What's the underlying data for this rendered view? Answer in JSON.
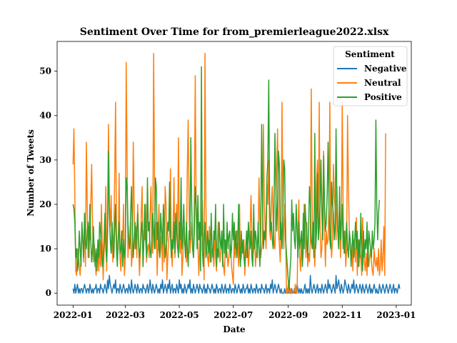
{
  "chart_data": {
    "type": "line",
    "title": "Sentiment Over Time for from_premierleague2022.xlsx",
    "xlabel": "Date",
    "ylabel": "Number of Tweets",
    "x_start": "2022-01-01",
    "x_end": "2022-12-31",
    "xlim": [
      "2021-12-14",
      "2023-01-18"
    ],
    "ylim": [
      -2.7,
      56.7
    ],
    "x_ticks": [
      "2022-01",
      "2022-03",
      "2022-05",
      "2022-07",
      "2022-09",
      "2022-11",
      "2023-01"
    ],
    "y_ticks": [
      0,
      10,
      20,
      30,
      40,
      50
    ],
    "grid": false,
    "legend": {
      "title": "Sentiment",
      "position": "top-right"
    },
    "series": [
      {
        "name": "Negative",
        "color": "#1f77b4",
        "values": [
          1,
          0,
          2,
          0,
          1,
          2,
          0,
          1,
          0,
          1,
          1,
          0,
          1,
          2,
          1,
          0,
          1,
          1,
          0,
          2,
          1,
          0,
          1,
          0,
          1,
          1,
          2,
          0,
          1,
          1,
          0,
          2,
          1,
          1,
          0,
          1,
          2,
          1,
          0,
          3,
          1,
          4,
          2,
          1,
          0,
          1,
          2,
          1,
          3,
          0,
          1,
          1,
          0,
          2,
          1,
          0,
          1,
          2,
          1,
          0,
          1,
          1,
          0,
          2,
          1,
          0,
          3,
          1,
          0,
          1,
          2,
          1,
          0,
          2,
          1,
          0,
          1,
          1,
          0,
          2,
          1,
          1,
          0,
          1,
          2,
          0,
          1,
          3,
          1,
          0,
          2,
          1,
          0,
          1,
          2,
          1,
          0,
          1,
          0,
          2,
          1,
          3,
          0,
          1,
          2,
          1,
          0,
          2,
          1,
          3,
          0,
          1,
          2,
          0,
          1,
          1,
          0,
          2,
          1,
          0,
          3,
          1,
          2,
          0,
          1,
          0,
          2,
          1,
          0,
          1,
          2,
          1,
          3,
          0,
          1,
          0,
          2,
          1,
          0,
          1,
          2,
          1,
          0,
          2,
          1,
          1,
          0,
          1,
          2,
          0,
          1,
          0,
          2,
          1,
          1,
          0,
          1,
          2,
          1,
          0,
          1,
          0,
          2,
          1,
          0,
          1,
          1,
          0,
          2,
          1,
          0,
          1,
          2,
          0,
          1,
          1,
          0,
          2,
          1,
          0,
          1,
          1,
          0,
          2,
          1,
          0,
          1,
          2,
          1,
          0,
          1,
          0,
          2,
          1,
          0,
          1,
          1,
          2,
          0,
          1,
          0,
          2,
          1,
          0,
          1,
          1,
          0,
          2,
          1,
          0,
          1,
          1,
          0,
          2,
          1,
          1,
          0,
          1,
          2,
          0,
          1,
          1,
          0,
          2,
          1,
          3,
          0,
          1,
          2,
          1,
          0,
          1,
          2,
          1,
          0,
          1,
          0,
          0,
          0,
          1,
          0,
          0,
          1,
          0,
          2,
          0,
          0,
          1,
          0,
          0,
          1,
          0,
          0,
          2,
          1,
          0,
          1,
          0,
          1,
          0,
          0,
          1,
          2,
          0,
          1,
          0,
          1,
          0,
          4,
          1,
          0,
          1,
          2,
          1,
          0,
          1,
          2,
          0,
          1,
          1,
          0,
          2,
          1,
          0,
          1,
          2,
          1,
          0,
          3,
          1,
          2,
          1,
          0,
          1,
          2,
          1,
          0,
          4,
          1,
          2,
          3,
          1,
          0,
          2,
          1,
          0,
          1,
          3,
          2,
          1,
          0,
          2,
          1,
          0,
          1,
          2,
          1,
          3,
          0,
          1,
          2,
          1,
          0,
          1,
          2,
          1,
          0,
          2,
          1,
          0,
          1,
          2,
          1,
          0,
          1,
          2,
          0,
          1,
          0,
          1,
          2,
          1,
          0,
          1,
          0,
          0,
          2,
          1,
          0,
          1,
          2,
          1,
          0,
          1,
          2,
          1,
          0,
          1,
          2,
          1,
          0,
          1,
          2,
          0,
          1,
          1,
          0,
          1,
          2,
          1
        ]
      },
      {
        "name": "Neutral",
        "color": "#ff7f0e",
        "values": [
          29,
          37,
          22,
          5,
          4,
          10,
          9,
          6,
          4,
          8,
          14,
          12,
          7,
          18,
          6,
          34,
          20,
          8,
          15,
          12,
          20,
          29,
          16,
          7,
          11,
          7,
          4,
          8,
          10,
          5,
          12,
          6,
          20,
          11,
          3,
          9,
          13,
          24,
          5,
          17,
          38,
          20,
          15,
          22,
          11,
          7,
          13,
          26,
          43,
          14,
          9,
          10,
          27,
          8,
          5,
          14,
          12,
          20,
          4,
          8,
          52,
          30,
          8,
          12,
          10,
          16,
          6,
          9,
          34,
          20,
          10,
          15,
          8,
          20,
          11,
          4,
          9,
          18,
          24,
          6,
          14,
          12,
          20,
          7,
          10,
          11,
          8,
          18,
          24,
          12,
          9,
          54,
          26,
          10,
          16,
          4,
          12,
          20,
          8,
          10,
          13,
          5,
          18,
          7,
          24,
          20,
          3,
          8,
          12,
          14,
          28,
          10,
          6,
          15,
          26,
          8,
          12,
          20,
          10,
          35,
          12,
          9,
          16,
          4,
          8,
          15,
          11,
          10,
          7,
          28,
          39,
          20,
          9,
          12,
          16,
          11,
          8,
          22,
          49,
          20,
          15,
          11,
          4,
          10,
          14,
          13,
          21,
          12,
          3,
          54,
          20,
          10,
          8,
          6,
          15,
          12,
          7,
          10,
          9,
          6,
          14,
          8,
          5,
          12,
          16,
          10,
          7,
          10,
          14,
          8,
          6,
          4,
          12,
          10,
          9,
          6,
          8,
          11,
          10,
          6,
          4,
          2,
          13,
          8,
          10,
          14,
          12,
          6,
          20,
          7,
          8,
          10,
          9,
          12,
          4,
          10,
          8,
          14,
          6,
          9,
          15,
          22,
          13,
          8,
          10,
          14,
          6,
          9,
          11,
          12,
          26,
          16,
          8,
          10,
          12,
          38,
          20,
          14,
          10,
          25,
          20,
          30,
          14,
          12,
          20,
          24,
          16,
          11,
          10,
          20,
          28,
          37,
          14,
          11,
          7,
          15,
          43,
          18,
          10,
          20,
          16,
          0,
          0,
          2,
          0,
          0,
          1,
          0,
          0,
          0,
          0,
          2,
          0,
          0,
          14,
          21,
          8,
          5,
          12,
          6,
          9,
          20,
          14,
          8,
          16,
          6,
          9,
          7,
          12,
          46,
          20,
          10,
          14,
          6,
          12,
          25,
          30,
          12,
          43,
          14,
          8,
          10,
          20,
          32,
          15,
          6,
          14,
          11,
          12,
          19,
          43,
          14,
          8,
          12,
          29,
          22,
          19,
          12,
          24,
          14,
          10,
          20,
          8,
          15,
          43,
          20,
          9,
          14,
          6,
          10,
          40,
          24,
          14,
          10,
          8,
          11,
          5,
          12,
          10,
          7,
          17,
          4,
          12,
          6,
          10,
          8,
          4,
          17,
          10,
          7,
          5,
          9,
          4,
          12,
          6,
          8,
          10,
          7,
          5,
          4,
          10,
          7,
          6,
          8,
          5,
          10,
          4,
          6,
          12,
          5,
          8,
          15,
          4,
          36
        ]
      },
      {
        "name": "Positive",
        "color": "#2ca02c",
        "values": [
          20,
          19,
          16,
          8,
          10,
          5,
          7,
          14,
          10,
          6,
          16,
          12,
          8,
          18,
          11,
          10,
          14,
          16,
          8,
          20,
          12,
          7,
          10,
          15,
          9,
          6,
          10,
          5,
          12,
          8,
          16,
          14,
          10,
          6,
          8,
          12,
          18,
          10,
          7,
          14,
          32,
          18,
          12,
          9,
          16,
          11,
          8,
          14,
          20,
          10,
          6,
          12,
          16,
          9,
          10,
          14,
          6,
          12,
          8,
          10,
          26,
          24,
          16,
          12,
          10,
          18,
          24,
          14,
          8,
          12,
          16,
          10,
          14,
          18,
          12,
          8,
          10,
          14,
          16,
          6,
          12,
          20,
          12,
          8,
          26,
          14,
          16,
          10,
          8,
          12,
          18,
          14,
          10,
          26,
          24,
          12,
          16,
          10,
          8,
          18,
          14,
          11,
          20,
          16,
          8,
          10,
          12,
          16,
          14,
          25,
          13,
          8,
          12,
          10,
          16,
          9,
          18,
          14,
          11,
          8,
          16,
          12,
          26,
          10,
          14,
          20,
          12,
          8,
          16,
          10,
          6,
          14,
          12,
          35,
          20,
          10,
          8,
          14,
          24,
          20,
          10,
          22,
          12,
          16,
          5,
          51,
          10,
          6,
          12,
          16,
          8,
          10,
          14,
          9,
          12,
          7,
          18,
          10,
          8,
          14,
          12,
          20,
          6,
          10,
          8,
          16,
          12,
          10,
          14,
          6,
          20,
          9,
          12,
          8,
          16,
          10,
          13,
          14,
          8,
          10,
          18,
          12,
          16,
          10,
          14,
          8,
          12,
          20,
          10,
          6,
          14,
          9,
          12,
          8,
          6,
          10,
          14,
          8,
          16,
          12,
          10,
          14,
          8,
          6,
          20,
          10,
          14,
          12,
          8,
          16,
          10,
          6,
          14,
          38,
          20,
          10,
          14,
          12,
          16,
          26,
          30,
          48,
          20,
          14,
          16,
          12,
          10,
          20,
          36,
          24,
          14,
          20,
          32,
          29,
          12,
          16,
          10,
          18,
          30,
          28,
          12,
          9,
          6,
          3,
          1,
          5,
          8,
          21,
          14,
          18,
          12,
          10,
          20,
          14,
          8,
          16,
          10,
          12,
          14,
          6,
          18,
          10,
          20,
          16,
          12,
          8,
          14,
          24,
          20,
          12,
          10,
          16,
          8,
          36,
          10,
          14,
          27,
          12,
          16,
          20,
          30,
          18,
          12,
          31,
          20,
          14,
          16,
          22,
          34,
          20,
          12,
          10,
          25,
          20,
          18,
          12,
          16,
          37,
          20,
          14,
          10,
          24,
          12,
          16,
          20,
          10,
          14,
          9,
          12,
          16,
          10,
          8,
          14,
          12,
          6,
          10,
          14,
          8,
          12,
          16,
          10,
          14,
          6,
          12,
          8,
          18,
          10,
          5,
          14,
          8,
          12,
          10,
          16,
          6,
          14,
          12,
          10,
          8,
          14,
          10,
          12,
          16,
          39,
          20,
          12,
          18,
          21
        ]
      }
    ]
  }
}
